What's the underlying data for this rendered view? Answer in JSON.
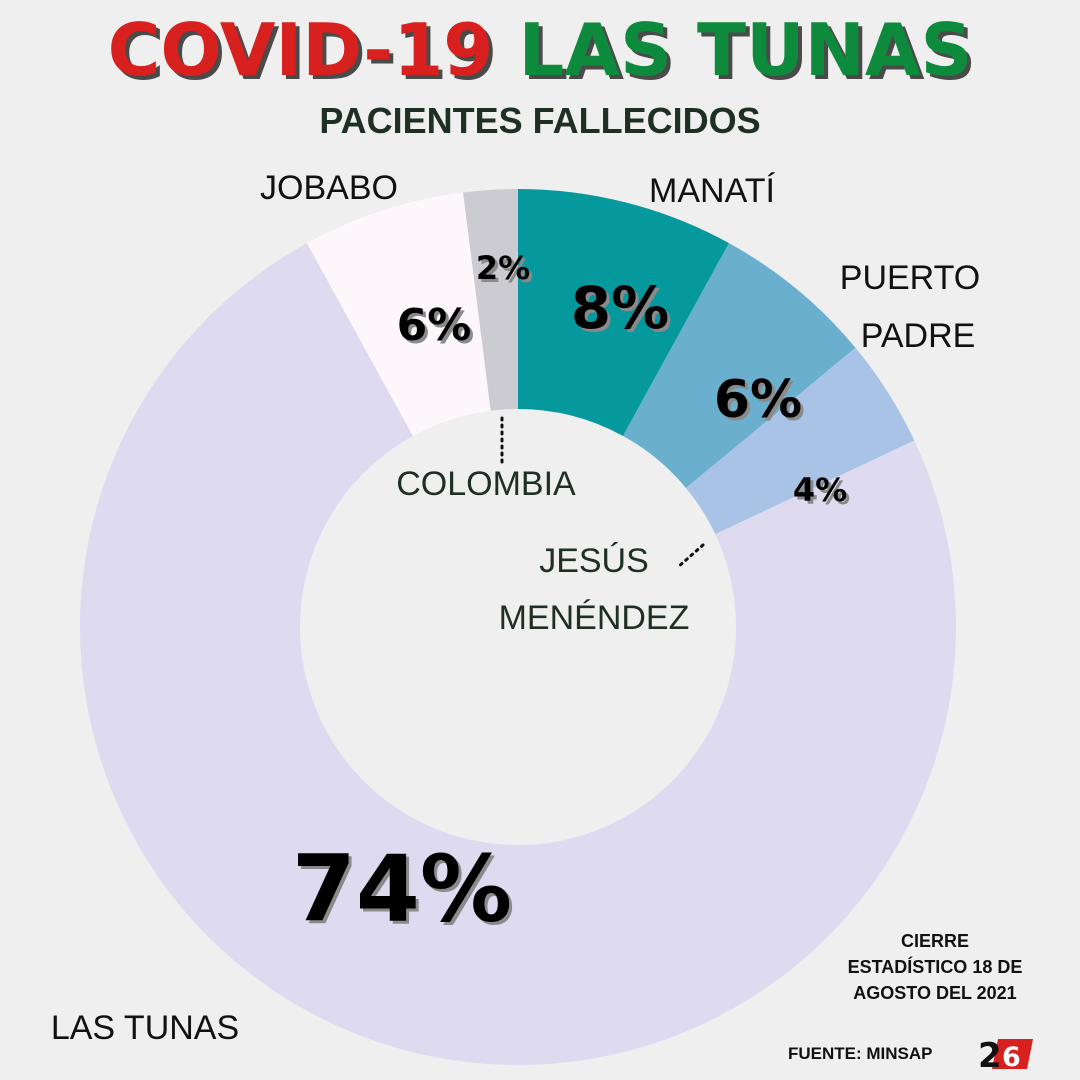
{
  "header": {
    "title_part1": "COVID-19",
    "title_part2": "LAS TUNAS",
    "subtitle": "PACIENTES FALLECIDOS"
  },
  "chart_data": {
    "type": "pie",
    "subtype": "donut",
    "slices": [
      {
        "label": "MANATÍ",
        "value": 8,
        "value_label": "8%",
        "color": "#05999e"
      },
      {
        "label": "PUERTO PADRE",
        "value": 6,
        "value_label": "6%",
        "color": "#6aafcd"
      },
      {
        "label": "JESÚS MENÉNDEZ",
        "value": 4,
        "value_label": "4%",
        "color": "#a9c3e6"
      },
      {
        "label": "LAS TUNAS",
        "value": 74,
        "value_label": "74%",
        "color": "#dedbf1"
      },
      {
        "label": "JOBABO",
        "value": 6,
        "value_label": "6%",
        "color": "#fdf7fb"
      },
      {
        "label": "COLOMBIA",
        "value": 2,
        "value_label": "2%",
        "color": "#cbcbd1"
      }
    ]
  },
  "footer": {
    "note": "CIERRE ESTADÍSTICO 18 DE AGOSTO DEL 2021",
    "source": "FUENTE: MINSAP",
    "logo_text": "26"
  }
}
